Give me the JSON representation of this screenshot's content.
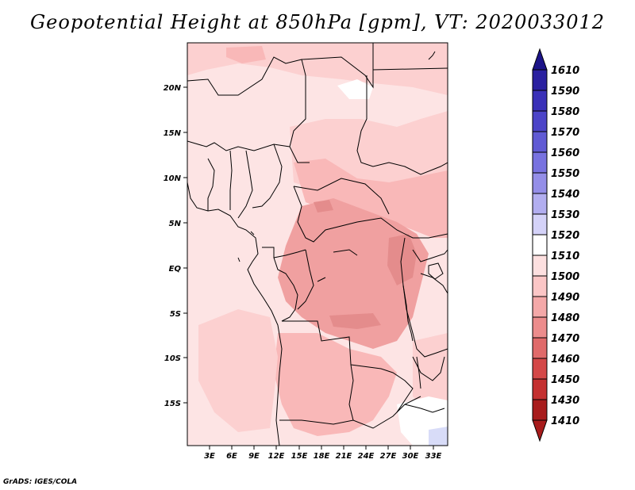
{
  "title": "Geopotential Height at 850hPa [gpm], VT: 2020033012",
  "credit": "GrADS: IGES/COLA",
  "map": {
    "lat_ticks": [
      "20N",
      "15N",
      "10N",
      "5N",
      "EQ",
      "5S",
      "10S",
      "15S"
    ],
    "lon_ticks": [
      "3E",
      "6E",
      "9E",
      "12E",
      "15E",
      "18E",
      "21E",
      "24E",
      "27E",
      "30E",
      "33E"
    ],
    "shading_colors": {
      "lightest": "#fde4e4",
      "light": "#fcd0d0",
      "medium": "#f9b8b8",
      "darker": "#f0a0a0",
      "darkest": "#e48c8c",
      "white": "#ffffff",
      "pale_blue": "#d8dcf8"
    }
  },
  "colorbar": {
    "levels": [
      {
        "label": "1610",
        "color": "#1c1488"
      },
      {
        "label": "1590",
        "color": "#2a20a0"
      },
      {
        "label": "1580",
        "color": "#3a30b8"
      },
      {
        "label": "1570",
        "color": "#4c44c8"
      },
      {
        "label": "1560",
        "color": "#605ad4"
      },
      {
        "label": "1550",
        "color": "#7872e0"
      },
      {
        "label": "1540",
        "color": "#948ee8"
      },
      {
        "label": "1530",
        "color": "#b2aef0"
      },
      {
        "label": "1520",
        "color": "#d4d2f8"
      },
      {
        "label": "1510",
        "color": "#ffffff"
      },
      {
        "label": "1500",
        "color": "#fde0e0"
      },
      {
        "label": "1490",
        "color": "#fbc6c6"
      },
      {
        "label": "1480",
        "color": "#f4a8a8"
      },
      {
        "label": "1470",
        "color": "#ec8c8c"
      },
      {
        "label": "1460",
        "color": "#e06a6a"
      },
      {
        "label": "1450",
        "color": "#d44848"
      },
      {
        "label": "1430",
        "color": "#c43030"
      },
      {
        "label": "1410",
        "color": "#a81c1c"
      }
    ],
    "bottom_triangle_color": "#a81c1c"
  }
}
